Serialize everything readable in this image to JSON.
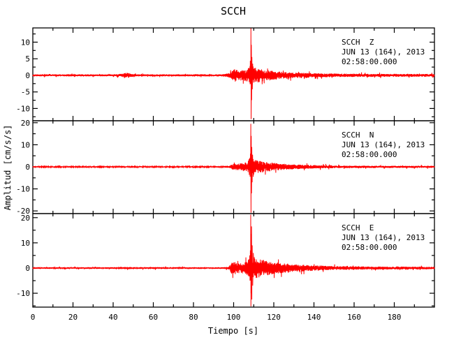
{
  "figure": {
    "background": "#ffffff",
    "axis_color": "#000000"
  },
  "chart_data": {
    "type": "line",
    "title": "SCCH",
    "xlabel": "Tiempo [s]",
    "ylabel": "Amplitud [cm/s/s]",
    "trace_color": "#ff0000",
    "x_range": [
      0,
      200
    ],
    "x_major_step": 20,
    "x_minor_step": 10,
    "x_tick_labels": [
      0,
      20,
      40,
      60,
      80,
      100,
      120,
      140,
      160,
      180
    ],
    "grid": false,
    "event": {
      "p_onset_s": 99.5,
      "s_peak_s": 108.6,
      "small_burst_s": 47
    },
    "panels": [
      {
        "station": "SCCH",
        "channel": "Z",
        "label_lines": [
          "SCCH  Z",
          "JUN 13 (164), 2013",
          "02:58:00.000"
        ],
        "ylim": [
          -13.7,
          14.3
        ],
        "y_major_ticks": [
          10,
          5,
          0,
          -5,
          -10
        ],
        "y_minor_step": 2.5,
        "peak_positive": 14.2,
        "peak_negative": -13.2,
        "seed": 12345,
        "envelope": [
          [
            0,
            0.3
          ],
          [
            40,
            0.3
          ],
          [
            44,
            0.45
          ],
          [
            47,
            0.8
          ],
          [
            50,
            0.45
          ],
          [
            53,
            0.3
          ],
          [
            95,
            0.35
          ],
          [
            98,
            0.7
          ],
          [
            99.5,
            1.7
          ],
          [
            101,
            1.9
          ],
          [
            103,
            1.5
          ],
          [
            105,
            1.7
          ],
          [
            107,
            1.9
          ],
          [
            108,
            3.2
          ],
          [
            109,
            3.2
          ],
          [
            110,
            2.6
          ],
          [
            112,
            2.2
          ],
          [
            115,
            1.8
          ],
          [
            119,
            1.4
          ],
          [
            124,
            1.1
          ],
          [
            130,
            0.85
          ],
          [
            140,
            0.65
          ],
          [
            155,
            0.5
          ],
          [
            200,
            0.42
          ]
        ],
        "spike": {
          "t": 108.6,
          "points": [
            [
              -0.45,
              2.8
            ],
            [
              -0.3,
              -2.5
            ],
            [
              -0.15,
              3.5
            ],
            [
              0,
              14.2
            ],
            [
              0.1,
              -13.2
            ],
            [
              0.22,
              9.2
            ],
            [
              0.34,
              -7.5
            ],
            [
              0.5,
              5.5
            ],
            [
              0.7,
              -4.2
            ],
            [
              0.9,
              3.5
            ]
          ]
        }
      },
      {
        "station": "SCCH",
        "channel": "N",
        "label_lines": [
          "SCCH  N",
          "JUN 13 (164), 2013",
          "02:58:00.000"
        ],
        "ylim": [
          -21.2,
          20.9
        ],
        "y_major_ticks": [
          20,
          10,
          0,
          -10,
          -20
        ],
        "y_minor_step": 5,
        "peak_positive": 19.5,
        "peak_negative": -20.8,
        "seed": 54321,
        "envelope": [
          [
            0,
            0.28
          ],
          [
            95,
            0.28
          ],
          [
            98,
            0.5
          ],
          [
            99.5,
            1.3
          ],
          [
            102,
            1.5
          ],
          [
            105,
            1.8
          ],
          [
            107,
            2.2
          ],
          [
            108,
            4.5
          ],
          [
            109,
            4.5
          ],
          [
            110,
            3.6
          ],
          [
            112,
            3.0
          ],
          [
            115,
            2.4
          ],
          [
            119,
            1.9
          ],
          [
            124,
            1.45
          ],
          [
            130,
            1.1
          ],
          [
            140,
            0.8
          ],
          [
            152,
            0.6
          ],
          [
            170,
            0.5
          ],
          [
            200,
            0.45
          ]
        ],
        "spike": {
          "t": 108.55,
          "points": [
            [
              -0.5,
              4
            ],
            [
              -0.35,
              -4.5
            ],
            [
              -0.18,
              6
            ],
            [
              0,
              19.5
            ],
            [
              0.1,
              -20.8
            ],
            [
              0.22,
              14
            ],
            [
              0.35,
              -12
            ],
            [
              0.5,
              9
            ],
            [
              0.68,
              -7
            ],
            [
              0.9,
              5.5
            ],
            [
              1.2,
              -4.5
            ]
          ]
        }
      },
      {
        "station": "SCCH",
        "channel": "E",
        "label_lines": [
          "SCCH  E",
          "JUN 13 (164), 2013",
          "02:58:00.000"
        ],
        "ylim": [
          -15.5,
          21.6
        ],
        "y_major_ticks": [
          20,
          10,
          0,
          -10
        ],
        "y_minor_step": 5,
        "peak_positive": 21.2,
        "peak_negative": -15.2,
        "seed": 99991,
        "envelope": [
          [
            0,
            0.3
          ],
          [
            42,
            0.35
          ],
          [
            45,
            0.5
          ],
          [
            48,
            0.4
          ],
          [
            95,
            0.32
          ],
          [
            97.5,
            0.5
          ],
          [
            99,
            2.3
          ],
          [
            101,
            2.5
          ],
          [
            103,
            1.9
          ],
          [
            105,
            2.3
          ],
          [
            107,
            3.0
          ],
          [
            108,
            5.0
          ],
          [
            109.5,
            5.0
          ],
          [
            111,
            4.2
          ],
          [
            113,
            3.6
          ],
          [
            116,
            3.0
          ],
          [
            120,
            2.4
          ],
          [
            125,
            1.9
          ],
          [
            131,
            1.5
          ],
          [
            139,
            1.1
          ],
          [
            150,
            0.8
          ],
          [
            165,
            0.62
          ],
          [
            200,
            0.52
          ]
        ],
        "spike": {
          "t": 108.5,
          "points": [
            [
              -0.5,
              5
            ],
            [
              -0.35,
              -5
            ],
            [
              -0.18,
              7
            ],
            [
              0,
              21.2
            ],
            [
              0.1,
              -15.2
            ],
            [
              0.2,
              13.5
            ],
            [
              0.3,
              -10
            ],
            [
              0.42,
              16.5
            ],
            [
              0.56,
              -12.5
            ],
            [
              0.75,
              9
            ],
            [
              1.0,
              -7
            ],
            [
              1.3,
              6
            ]
          ]
        }
      }
    ]
  }
}
